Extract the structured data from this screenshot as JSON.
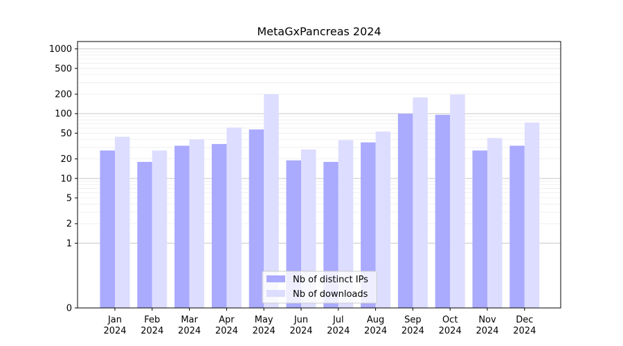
{
  "chart_data": {
    "type": "bar",
    "title": "MetaGxPancreas 2024",
    "xlabel": "",
    "ylabel": "",
    "yscale": "symlog",
    "ylim": [
      0,
      1300
    ],
    "yticks": [
      0,
      1,
      2,
      5,
      10,
      20,
      50,
      100,
      200,
      500,
      1000
    ],
    "grid": true,
    "legend_position": "lower center",
    "categories": [
      "Jan\n2024",
      "Feb\n2024",
      "Mar\n2024",
      "Apr\n2024",
      "May\n2024",
      "Jun\n2024",
      "Jul\n2024",
      "Aug\n2024",
      "Sep\n2024",
      "Oct\n2024",
      "Nov\n2024",
      "Dec\n2024"
    ],
    "series": [
      {
        "name": "Nb of distinct IPs",
        "color": "#aaaaff",
        "values": [
          27,
          18,
          32,
          34,
          57,
          19,
          18,
          36,
          100,
          96,
          27,
          32
        ]
      },
      {
        "name": "Nb of downloads",
        "color": "#ddddff",
        "values": [
          44,
          27,
          40,
          61,
          200,
          28,
          39,
          53,
          178,
          197,
          42,
          73
        ]
      }
    ]
  }
}
